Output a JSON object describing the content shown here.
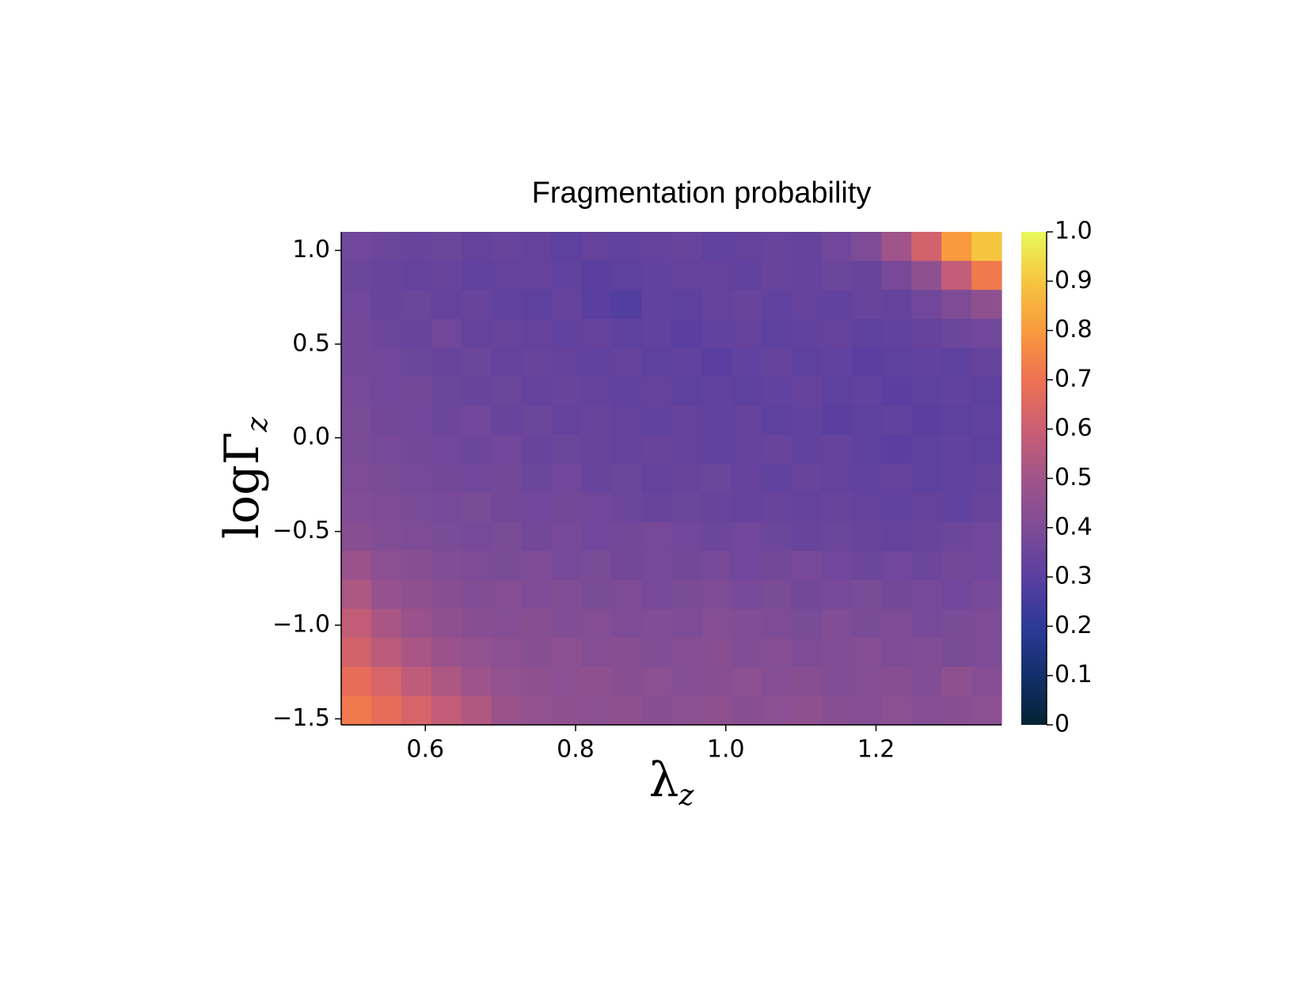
{
  "chart_data": {
    "type": "heatmap",
    "title": "Fragmentation probability",
    "xlabel": {
      "text": "λ",
      "sub": "z"
    },
    "ylabel": {
      "text": "logΓ",
      "sub": "z"
    },
    "xlim": [
      0.488,
      1.367
    ],
    "ylim": [
      -1.532,
      1.099
    ],
    "xticks": [
      0.6,
      0.8,
      {
        "value": 1,
        "label": "1.0"
      },
      1.2
    ],
    "yticks": [
      {
        "value": 1,
        "label": "1.0"
      },
      0.5,
      {
        "value": 0,
        "label": "0.0"
      },
      {
        "value": -0.5,
        "label": "−0.5"
      },
      {
        "value": -1,
        "label": "−1.0"
      },
      {
        "value": -1.5,
        "label": "−1.5"
      }
    ],
    "clim": [
      0,
      1
    ],
    "cticks": [
      0,
      0.1,
      0.2,
      0.3,
      0.4,
      0.5,
      0.6,
      0.7,
      0.8,
      0.9,
      {
        "value": 1,
        "label": "1.0"
      }
    ],
    "colormap": [
      "#042333",
      "#13306a",
      "#2d3a9a",
      "#5a3fa0",
      "#7e4c96",
      "#a0548a",
      "#cb5f73",
      "#ee7152",
      "#f99a3e",
      "#f6c53f",
      "#e8fa5b"
    ],
    "values": [
      [
        0.36,
        0.35,
        0.34,
        0.35,
        0.33,
        0.34,
        0.33,
        0.31,
        0.33,
        0.32,
        0.33,
        0.34,
        0.32,
        0.33,
        0.34,
        0.33,
        0.36,
        0.4,
        0.5,
        0.62,
        0.8,
        0.9
      ],
      [
        0.35,
        0.34,
        0.33,
        0.34,
        0.32,
        0.33,
        0.33,
        0.32,
        0.3,
        0.31,
        0.32,
        0.33,
        0.33,
        0.32,
        0.34,
        0.33,
        0.35,
        0.34,
        0.38,
        0.45,
        0.58,
        0.72
      ],
      [
        0.36,
        0.34,
        0.35,
        0.33,
        0.34,
        0.32,
        0.31,
        0.33,
        0.3,
        0.28,
        0.32,
        0.31,
        0.33,
        0.34,
        0.32,
        0.33,
        0.32,
        0.34,
        0.33,
        0.36,
        0.4,
        0.45
      ],
      [
        0.37,
        0.35,
        0.34,
        0.36,
        0.33,
        0.34,
        0.33,
        0.32,
        0.33,
        0.31,
        0.32,
        0.3,
        0.32,
        0.33,
        0.31,
        0.32,
        0.33,
        0.31,
        0.32,
        0.33,
        0.35,
        0.36
      ],
      [
        0.37,
        0.36,
        0.35,
        0.34,
        0.35,
        0.33,
        0.34,
        0.33,
        0.32,
        0.33,
        0.31,
        0.32,
        0.3,
        0.32,
        0.33,
        0.31,
        0.32,
        0.3,
        0.31,
        0.32,
        0.31,
        0.33
      ],
      [
        0.38,
        0.36,
        0.37,
        0.35,
        0.34,
        0.35,
        0.33,
        0.34,
        0.33,
        0.32,
        0.33,
        0.31,
        0.32,
        0.31,
        0.32,
        0.33,
        0.31,
        0.32,
        0.3,
        0.31,
        0.32,
        0.31
      ],
      [
        0.39,
        0.37,
        0.36,
        0.35,
        0.36,
        0.34,
        0.35,
        0.33,
        0.34,
        0.33,
        0.32,
        0.33,
        0.32,
        0.33,
        0.31,
        0.32,
        0.3,
        0.31,
        0.32,
        0.3,
        0.31,
        0.32
      ],
      [
        0.39,
        0.38,
        0.37,
        0.36,
        0.35,
        0.36,
        0.34,
        0.35,
        0.34,
        0.33,
        0.34,
        0.33,
        0.32,
        0.33,
        0.34,
        0.32,
        0.33,
        0.31,
        0.3,
        0.31,
        0.32,
        0.31
      ],
      [
        0.4,
        0.39,
        0.38,
        0.37,
        0.36,
        0.37,
        0.35,
        0.36,
        0.34,
        0.35,
        0.33,
        0.34,
        0.35,
        0.33,
        0.32,
        0.34,
        0.33,
        0.32,
        0.33,
        0.31,
        0.32,
        0.33
      ],
      [
        0.41,
        0.4,
        0.39,
        0.38,
        0.39,
        0.37,
        0.36,
        0.37,
        0.36,
        0.35,
        0.34,
        0.35,
        0.34,
        0.33,
        0.34,
        0.33,
        0.34,
        0.33,
        0.32,
        0.33,
        0.32,
        0.34
      ],
      [
        0.43,
        0.41,
        0.4,
        0.39,
        0.38,
        0.39,
        0.37,
        0.38,
        0.36,
        0.37,
        0.38,
        0.36,
        0.35,
        0.36,
        0.35,
        0.34,
        0.35,
        0.34,
        0.33,
        0.34,
        0.35,
        0.36
      ],
      [
        0.48,
        0.44,
        0.43,
        0.41,
        0.4,
        0.39,
        0.4,
        0.38,
        0.39,
        0.37,
        0.38,
        0.37,
        0.38,
        0.36,
        0.37,
        0.38,
        0.36,
        0.35,
        0.36,
        0.35,
        0.37,
        0.36
      ],
      [
        0.53,
        0.47,
        0.45,
        0.43,
        0.41,
        0.42,
        0.4,
        0.41,
        0.39,
        0.4,
        0.38,
        0.39,
        0.4,
        0.38,
        0.39,
        0.37,
        0.38,
        0.39,
        0.37,
        0.38,
        0.36,
        0.38
      ],
      [
        0.58,
        0.52,
        0.48,
        0.45,
        0.43,
        0.42,
        0.43,
        0.41,
        0.42,
        0.4,
        0.41,
        0.4,
        0.42,
        0.41,
        0.4,
        0.39,
        0.41,
        0.39,
        0.4,
        0.38,
        0.39,
        0.4
      ],
      [
        0.62,
        0.56,
        0.52,
        0.48,
        0.46,
        0.44,
        0.43,
        0.44,
        0.42,
        0.43,
        0.41,
        0.42,
        0.43,
        0.41,
        0.42,
        0.4,
        0.41,
        0.42,
        0.4,
        0.41,
        0.39,
        0.4
      ],
      [
        0.68,
        0.63,
        0.57,
        0.53,
        0.49,
        0.46,
        0.45,
        0.44,
        0.45,
        0.43,
        0.44,
        0.42,
        0.43,
        0.44,
        0.42,
        0.43,
        0.41,
        0.42,
        0.43,
        0.41,
        0.45,
        0.42
      ],
      [
        0.72,
        0.68,
        0.63,
        0.58,
        0.54,
        0.48,
        0.46,
        0.45,
        0.44,
        0.45,
        0.43,
        0.44,
        0.45,
        0.43,
        0.44,
        0.45,
        0.43,
        0.42,
        0.44,
        0.42,
        0.43,
        0.44
      ]
    ]
  }
}
